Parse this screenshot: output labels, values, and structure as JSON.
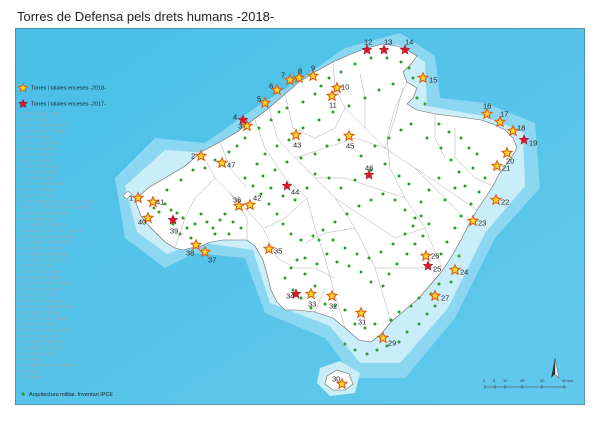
{
  "title": "Torres de Defensa pels drets humans -2018-",
  "legend": {
    "torres_2018": "Torres i talaies enceses -2018-",
    "torres_2017": "Torres i talaies enceses -2017-",
    "arquitectura": "Arquitectura militar. Inventari IPCE",
    "list": [
      "22. Torre de sa Pedra",
      "23. Torre Vosa",
      "24. Torre de Son Garrover",
      "25. Torre de sa Porrassa",
      "26. Torre Picada",
      "27. Torre de ses Beca",
      "28. Torre Cap Pinar",
      "29. Torre des Bou",
      "30. Torre de Llac",
      "31. Torre de Manut",
      "32. Bastions de Llac",
      "33. Castell de Bel",
      "34. Torre de Sant Martí",
      "35. Torre d'Albarqa",
      "36. Torre d'Arenal",
      "37. Torre Mossea i Torre des Cap Parrots",
      "38. Torre d'Albarca i Talaia des Macalls",
      "39. Talaia de Son Jaumell",
      "40. Torre Estudaïda",
      "41. Castell de Capdepera",
      "42. Talaia Nova des Cap Vermell",
      "43. Castell (Punta de n'Amer)",
      "44. Castell de Porto Cristo",
      "45. Castell de Santueri",
      "46. Puig de Sant Salvador",
      "47. Castell de Portopetro",
      "48. Torre d'en Beu",
      "49. Torre de sa Guaita",
      "50. Castell de Cabrera",
      "51. Torre de Santa Catalina",
      "52. Torre de s'Estanyol",
      "53. Torre de Cala Pí",
      "54. Torre des Cap Blanc",
      "55. Torre de Cap Enderrocat",
      "56. Castell de Bellver",
      "57. Torre de Cala Figuera",
      "58. Torre de Portals",
      "59. Torre des Cap Andritxol",
      "60. Torre de sa Mola",
      "61. Castell de Sant Elm",
      "42. Castell de Manacor",
      "43. Castell d'Alaró",
      "44. Manacor",
      "45. Puig de Santa Magdalena",
      "46. Sineu",
      "47. Esporles"
    ]
  },
  "scale": {
    "labels": [
      "0",
      "5",
      "10",
      "20",
      "30",
      "40 km"
    ]
  },
  "markers_2018": [
    {
      "n": "1"
    },
    {
      "n": "2"
    },
    {
      "n": "3"
    },
    {
      "n": "5"
    },
    {
      "n": "6"
    },
    {
      "n": "7"
    },
    {
      "n": "8"
    },
    {
      "n": "9"
    },
    {
      "n": "10"
    },
    {
      "n": "11"
    },
    {
      "n": "15"
    },
    {
      "n": "16"
    },
    {
      "n": "17"
    },
    {
      "n": "18"
    },
    {
      "n": "20"
    },
    {
      "n": "21"
    },
    {
      "n": "22"
    },
    {
      "n": "23"
    },
    {
      "n": "24"
    },
    {
      "n": "26"
    },
    {
      "n": "27"
    },
    {
      "n": "29"
    },
    {
      "n": "30"
    },
    {
      "n": "31"
    },
    {
      "n": "32"
    },
    {
      "n": "33"
    },
    {
      "n": "35"
    },
    {
      "n": "36"
    },
    {
      "n": "37"
    },
    {
      "n": "38"
    },
    {
      "n": "40"
    },
    {
      "n": "41"
    },
    {
      "n": "42"
    },
    {
      "n": "43"
    },
    {
      "n": "45"
    },
    {
      "n": "47"
    }
  ],
  "markers_2017": [
    {
      "n": "4"
    },
    {
      "n": "12"
    },
    {
      "n": "13"
    },
    {
      "n": "14"
    },
    {
      "n": "19"
    },
    {
      "n": "25"
    },
    {
      "n": "34"
    },
    {
      "n": "39"
    },
    {
      "n": "44"
    },
    {
      "n": "46"
    }
  ],
  "colors": {
    "sea_deep": "#52c3e8",
    "sea_mid": "#8fd9f2",
    "sea_light": "#d4f1fb",
    "land": "#ffffff",
    "star_2018": "#f5a51c",
    "star_2018_fill": "#ffd82a",
    "star_2017": "#d8192d",
    "dot": "#2e9e2a"
  }
}
